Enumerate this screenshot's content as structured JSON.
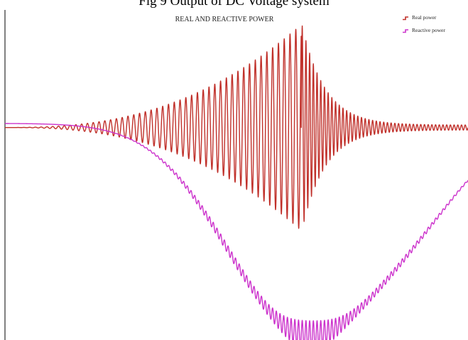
{
  "figure_caption": "Fig 9 Output of DC Voltage system",
  "chart_data": {
    "type": "line",
    "title": "REAL AND REACTIVE POWER",
    "xlabel": "",
    "ylabel": "",
    "xlim": [
      0,
      1
    ],
    "ylim": [
      -1.05,
      0.55
    ],
    "grid": false,
    "legend_placement": "top-right",
    "series": [
      {
        "name": "Real power",
        "color": "#c0302a"
      },
      {
        "name": "Reactive power",
        "color": "#cc33cc"
      }
    ]
  }
}
